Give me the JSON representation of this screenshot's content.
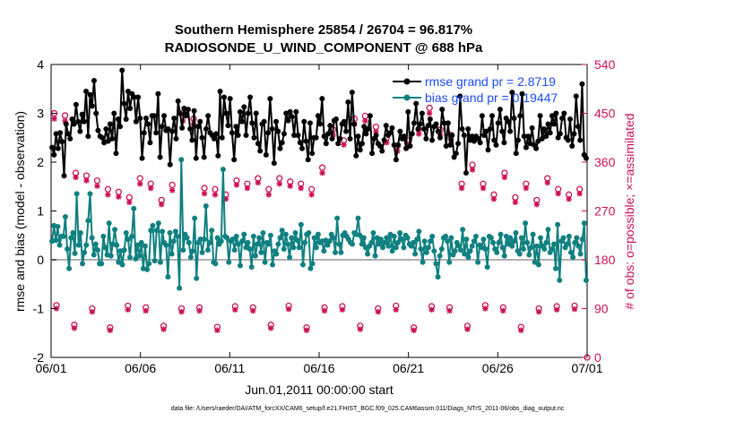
{
  "chart_data": {
    "type": "line",
    "title": "Southern Hemisphere 25854 / 26704 = 96.817%",
    "subtitle": "RADIOSONDE_U_WIND_COMPONENT @ 688 hPa",
    "xlabel": "Jun.01,2011 00:00:00 start",
    "ylabel": "rmse and bias (model - observation)",
    "ylabel_right": "# of obs: o=possible; ×=assimilated",
    "footnote": "data file: /Users/raeder/DAI/ATM_forcXX/CAM6_setup/f.e21.FHIST_BGC.f09_025.CAM6assim.011/Diags_NTrS_2011-06/obs_diag_output.nc",
    "xlim": [
      0,
      30
    ],
    "ylim": [
      -2,
      4
    ],
    "ylim_right": [
      0,
      540
    ],
    "x_ticks": [
      0,
      5,
      10,
      15,
      20,
      25,
      30
    ],
    "x_tick_labels": [
      "06/01",
      "06/06",
      "06/11",
      "06/16",
      "06/21",
      "06/26",
      "07/01"
    ],
    "y_ticks": [
      -2,
      -1,
      0,
      1,
      2,
      3,
      4
    ],
    "y_tick_labels": [
      "-2",
      "-1",
      "0",
      "1",
      "2",
      "3",
      "4"
    ],
    "y_right_ticks": [
      0,
      90,
      180,
      270,
      360,
      450,
      540
    ],
    "y_right_tick_labels": [
      "0",
      "90",
      "180",
      "270",
      "360",
      "450",
      "540"
    ],
    "legend_position": "top-right",
    "series": [
      {
        "name": "rmse grand pr = 2.8719",
        "color": "#000000",
        "marker": "dot",
        "values": [
          2.3,
          2.15,
          2.58,
          2.28,
          2.6,
          2.42,
          1.72,
          2.78,
          2.58,
          2.48,
          2.88,
          2.78,
          3.18,
          2.83,
          2.63,
          2.98,
          2.83,
          3.45,
          2.53,
          3.38,
          3.15,
          3.67,
          3.0,
          2.65,
          2.53,
          2.5,
          2.4,
          2.68,
          2.43,
          2.78,
          2.48,
          3.0,
          2.18,
          2.88,
          2.73,
          3.88,
          3.2,
          2.88,
          3.45,
          3.1,
          3.4,
          3.33,
          2.83,
          3.33,
          2.9,
          2.08,
          2.6,
          2.9,
          2.78,
          2.4,
          2.95,
          2.95,
          2.6,
          3.4,
          2.1,
          2.73,
          2.95,
          2.65,
          2.68,
          1.95,
          2.63,
          2.9,
          2.48,
          3.25,
          3.0,
          2.7,
          3.1,
          2.95,
          3.08,
          2.68,
          2.45,
          3.05,
          2.08,
          2.73,
          2.83,
          2.5,
          2.1,
          2.68,
          2.95,
          2.6,
          2.55,
          2.48,
          2.58,
          2.13,
          3.45,
          2.5,
          3.33,
          3.0,
          2.75,
          3.3,
          2.6,
          2.05,
          2.73,
          2.55,
          3.03,
          2.83,
          3.13,
          2.55,
          3.0,
          3.33,
          2.8,
          2.5,
          3.0,
          2.38,
          2.23,
          2.78,
          2.83,
          2.15,
          2.6,
          3.3,
          2.68,
          1.98,
          2.83,
          2.63,
          2.28,
          2.4,
          2.58,
          3.0,
          2.85,
          3.03,
          2.93,
          2.55,
          3.03,
          2.55,
          2.4,
          2.28,
          2.83,
          2.43,
          2.05,
          2.8,
          2.18,
          2.5,
          2.5,
          2.95,
          2.78,
          3.3,
          2.53,
          2.38,
          2.58,
          2.75,
          2.48,
          2.85,
          2.88,
          2.38,
          2.48,
          2.78,
          2.83,
          2.63,
          3.23,
          2.48,
          3.43,
          2.78,
          2.13,
          2.53,
          2.25,
          2.38,
          2.73,
          2.58,
          2.68,
          2.95,
          2.18,
          2.48,
          2.55,
          2.38,
          2.33,
          2.23,
          2.45,
          2.75,
          2.55,
          2.6,
          2.7,
          2.35,
          2.05,
          2.35,
          2.63,
          2.48,
          2.53,
          2.28,
          3.03,
          2.33,
          2.58,
          2.8,
          3.2,
          2.68,
          2.78,
          3.0,
          2.68,
          2.48,
          2.75,
          2.88,
          2.45,
          2.73,
          2.78,
          2.63,
          2.5,
          3.08,
          2.8,
          2.33,
          2.8,
          2.35,
          2.55,
          2.1,
          2.18,
          2.38,
          3.35,
          2.68,
          2.55,
          1.78,
          2.68,
          2.45,
          2.53,
          2.43,
          2.53,
          2.48,
          2.4,
          2.95,
          2.55,
          2.63,
          2.25,
          2.68,
          2.95,
          2.45,
          2.35,
          2.8,
          3.08,
          2.63,
          2.4,
          2.9,
          2.83,
          2.63,
          3.43,
          2.9,
          2.18,
          2.45,
          2.95,
          3.4,
          2.53,
          2.3,
          2.53,
          2.38,
          2.7,
          2.35,
          2.28,
          2.43,
          2.95,
          2.48,
          2.68,
          2.53,
          2.78,
          2.6,
          2.95,
          2.78,
          3.0,
          2.5,
          2.58,
          2.9,
          3.0,
          2.5,
          2.45,
          2.88,
          2.33,
          2.58,
          3.35,
          2.73,
          2.45,
          3.6,
          2.15,
          2.08
        ]
      },
      {
        "name": "bias grand pr = 0.19447",
        "color": "#108080",
        "marker": "dot",
        "values": [
          0.38,
          0.7,
          0.4,
          0.68,
          0.3,
          0.48,
          0.48,
          0.88,
          0.22,
          -0.18,
          0.45,
          0.55,
          0.13,
          1.35,
          0.3,
          0.55,
          -0.08,
          0.15,
          0.3,
          0.8,
          1.35,
          0.45,
          0.1,
          0.32,
          0.2,
          -0.08,
          -0.08,
          0.48,
          0.25,
          0.1,
          0.75,
          0.08,
          0.32,
          0.62,
          0.3,
          -0.05,
          0.18,
          -0.1,
          0.2,
          0.55,
          0.42,
          0.05,
          0.48,
          1.05,
          0.02,
          0.3,
          0.08,
          0.35,
          -0.18,
          0.28,
          -0.2,
          -0.08,
          0.6,
          0.7,
          -0.02,
          0.6,
          0.75,
          -0.05,
          0.58,
          0.35,
          0.3,
          -0.35,
          0.55,
          0.12,
          0.38,
          0.58,
          0.48,
          -0.58,
          2.05,
          0.2,
          0.52,
          0.45,
          0.35,
          0.05,
          0.18,
          0.85,
          -0.38,
          0.35,
          0.42,
          0.15,
          0.42,
          1.1,
          0.2,
          0.35,
          0.6,
          -0.05,
          -0.08,
          0.45,
          0.32,
          0.38,
          1.85,
          0.48,
          0.45,
          -0.05,
          0.38,
          0.42,
          0.2,
          0.48,
          0.32,
          -0.12,
          0.38,
          0.52,
          0.25,
          0.35,
          0.22,
          -0.15,
          0.48,
          0.08,
          0.32,
          0.45,
          0.15,
          0.55,
          -0.05,
          0.35,
          0.32,
          0.5,
          -0.1,
          0.18,
          0.12,
          0.32,
          0.45,
          0.6,
          0.22,
          0.52,
          0.32,
          0.05,
          0.45,
          0.25,
          0.55,
          0.4,
          0.25,
          0.72,
          -0.1,
          0.35,
          0.52,
          0.55,
          -0.18,
          -0.08,
          0.45,
          0.25,
          0.52,
          0.35,
          0.38,
          0.18,
          0.4,
          0.3,
          0.38,
          0.52,
          0.45,
          0.15,
          0.85,
          0.32,
          0.15,
          0.5,
          0.55,
          0.48,
          0.42,
          0.35,
          0.32,
          0.55,
          0.52,
          0.85,
          0.5,
          0.32,
          0.45,
          0.25,
          0.12,
          0.28,
          0.35,
          0.55,
          0.08,
          0.45,
          0.32,
          0.42,
          0.25,
          0.35,
          0.45,
          0.28,
          0.52,
          0.18,
          0.48,
          0.25,
          0.35,
          0.55,
          0.42,
          0.25,
          0.5,
          0.45,
          0.32,
          0.28,
          0.35,
          0.12,
          0.42,
          0.58,
          0.22,
          -0.05,
          0.38,
          0.15,
          0.25,
          0.38,
          0.48,
          0.18,
          -0.08,
          -0.35,
          0.08,
          0.22,
          0.45,
          0.48,
          0.38,
          -0.05,
          0.45,
          0.1,
          0.18,
          0.35,
          0.28,
          0.2,
          0.62,
          0.12,
          0.42,
          0.05,
          0.18,
          0.28,
          0.38,
          0.48,
          -0.05,
          0.3,
          0.25,
          0.42,
          0.22,
          -0.15,
          0.48,
          0.45,
          0.35,
          0.22,
          0.15,
          0.35,
          0.52,
          0.25,
          0.08,
          0.48,
          0.32,
          0.45,
          0.28,
          0.38,
          0.55,
          0.18,
          0.12,
          0.45,
          0.22,
          0.75,
          0.35,
          0.1,
          0.25,
          0.52,
          -0.05,
          0.28,
          -0.1,
          0.45,
          0.28,
          0.22,
          0.35,
          0.62,
          0.15,
          0.22,
          0.32,
          -0.18,
          0.72,
          -0.42,
          0.38,
          0.45,
          0.25,
          0.32,
          0.48,
          0.15,
          0.05,
          0.35,
          0.45,
          0.28,
          0.12,
          0.42,
          0.75,
          -0.42
        ]
      }
    ],
    "obs_possible_top": [
      450,
      446,
      340,
      335,
      326,
      310,
      305,
      295,
      330,
      320,
      290,
      318,
      450,
      440,
      312,
      310,
      300,
      326,
      320,
      330,
      310,
      330,
      324,
      320,
      310,
      350,
      420,
      400,
      440,
      445,
      425,
      405,
      390,
      400,
      420,
      460,
      420,
      410,
      320,
      355,
      320,
      300,
      340,
      295,
      320,
      290,
      330,
      310,
      300,
      310
    ],
    "obs_assimilated_top": [
      440,
      436,
      332,
      326,
      316,
      300,
      296,
      286,
      320,
      312,
      282,
      308,
      436,
      430,
      302,
      300,
      292,
      318,
      312,
      322,
      300,
      320,
      316,
      312,
      300,
      340,
      410,
      392,
      430,
      436,
      416,
      396,
      380,
      392,
      412,
      450,
      410,
      402,
      312,
      346,
      312,
      292,
      332,
      286,
      312,
      282,
      322,
      302,
      292,
      302
    ],
    "obs_possible_bottom": [
      96,
      60,
      90,
      55,
      95,
      92,
      58,
      90,
      92,
      56,
      94,
      92,
      60,
      95,
      55,
      92,
      94,
      58,
      90,
      95,
      55,
      94,
      92,
      58,
      96,
      92,
      56,
      90,
      94,
      95
    ],
    "obs_assimilated_bottom": [
      90,
      54,
      84,
      50,
      88,
      86,
      52,
      84,
      86,
      50,
      88,
      86,
      54,
      89,
      50,
      86,
      88,
      52,
      84,
      88,
      50,
      88,
      86,
      52,
      90,
      86,
      50,
      84,
      88,
      89
    ]
  }
}
